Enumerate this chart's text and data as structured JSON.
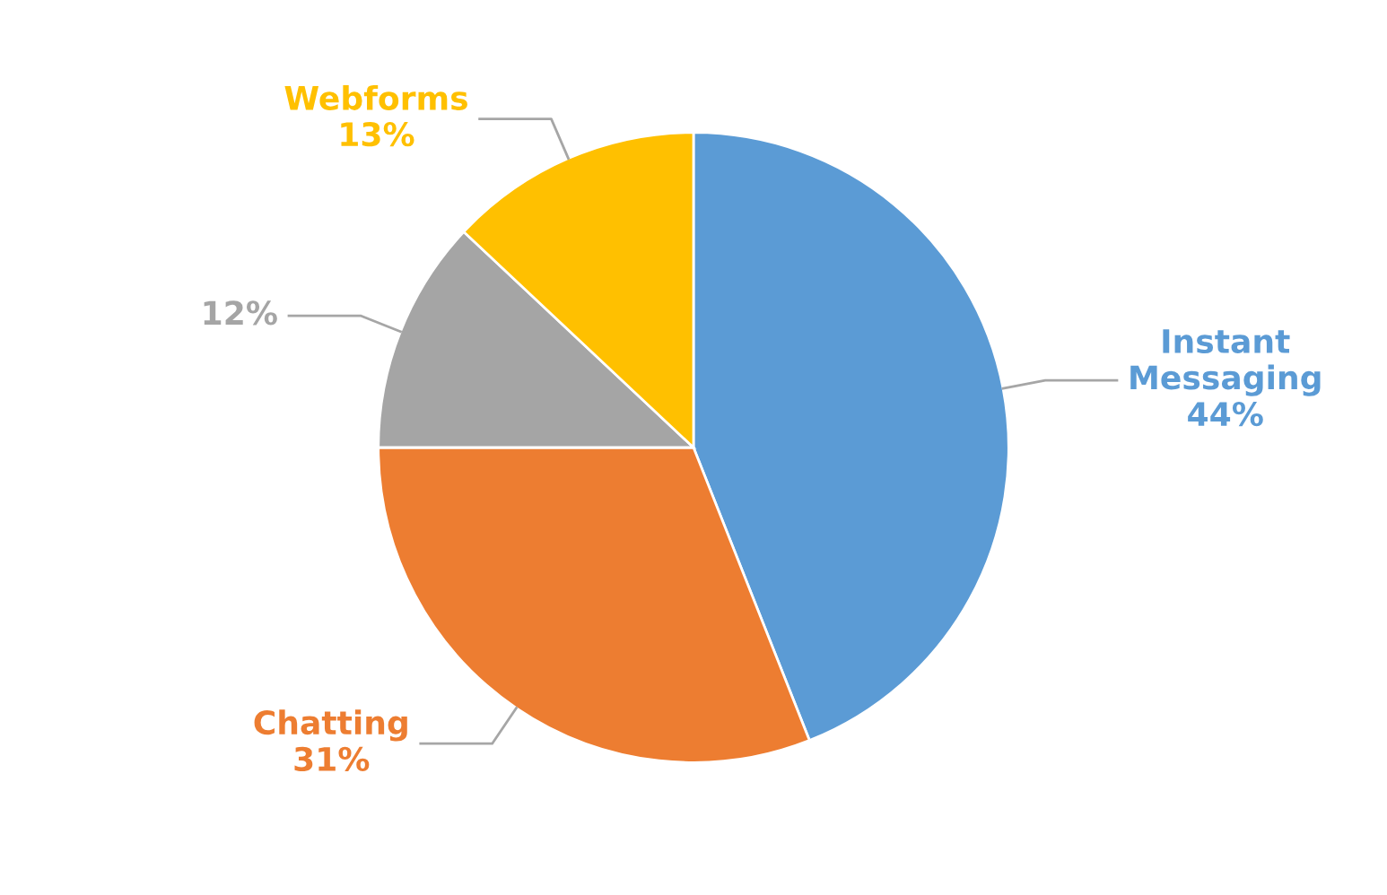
{
  "chart_data": {
    "type": "pie",
    "categories": [
      "Instant\nMessaging",
      "Chatting",
      null,
      "Webforms"
    ],
    "values": [
      44,
      31,
      12,
      13
    ],
    "value_labels": [
      "44%",
      "31%",
      "12%",
      "13%"
    ],
    "colors": [
      "#5b9bd5",
      "#ed7d31",
      "#a5a5a5",
      "#ffc000"
    ],
    "legend": false
  }
}
